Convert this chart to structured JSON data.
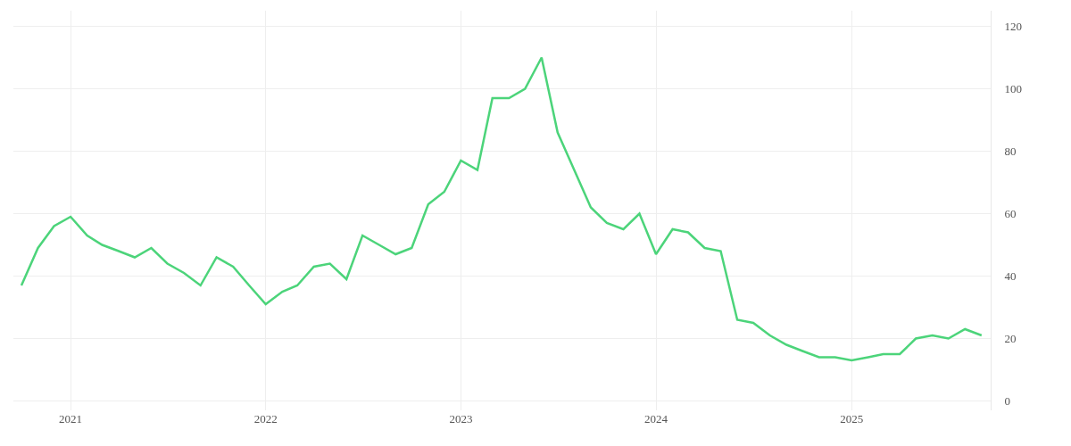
{
  "chart_data": {
    "type": "line",
    "x": [
      "2020-10",
      "2020-11",
      "2020-12",
      "2021-01",
      "2021-02",
      "2021-03",
      "2021-04",
      "2021-05",
      "2021-06",
      "2021-07",
      "2021-08",
      "2021-09",
      "2021-10",
      "2021-11",
      "2021-12",
      "2022-01",
      "2022-02",
      "2022-03",
      "2022-04",
      "2022-05",
      "2022-06",
      "2022-07",
      "2022-08",
      "2022-09",
      "2022-10",
      "2022-11",
      "2022-12",
      "2023-01",
      "2023-02",
      "2023-03",
      "2023-04",
      "2023-05",
      "2023-06",
      "2023-07",
      "2023-08",
      "2023-09",
      "2023-10",
      "2023-11",
      "2023-12",
      "2024-01",
      "2024-02",
      "2024-03",
      "2024-04",
      "2024-05",
      "2024-06",
      "2024-07",
      "2024-08",
      "2024-09",
      "2024-10",
      "2024-11",
      "2024-12",
      "2025-01",
      "2025-02",
      "2025-03",
      "2025-04",
      "2025-05",
      "2025-06",
      "2025-07",
      "2025-08",
      "2025-09"
    ],
    "series": [
      {
        "color": "#4cd47a",
        "values": [
          37,
          49,
          56,
          59,
          53,
          50,
          48,
          46,
          49,
          44,
          41,
          37,
          46,
          43,
          37,
          31,
          35,
          37,
          43,
          44,
          39,
          53,
          50,
          47,
          49,
          63,
          67,
          77,
          74,
          97,
          97,
          100,
          110,
          86,
          74,
          62,
          57,
          55,
          60,
          47,
          55,
          54,
          49,
          48,
          26,
          25,
          21,
          18,
          16,
          14,
          14,
          13,
          14,
          15,
          15,
          20,
          21,
          20,
          23,
          21
        ]
      }
    ],
    "xlim": [
      "2020-09-16",
      "2025-09-18"
    ],
    "xticks": [
      {
        "value": "2021-01",
        "label": "2021"
      },
      {
        "value": "2022-01",
        "label": "2022"
      },
      {
        "value": "2023-01",
        "label": "2023"
      },
      {
        "value": "2024-01",
        "label": "2024"
      },
      {
        "value": "2025-01",
        "label": "2025"
      }
    ],
    "ylim": [
      -3,
      125
    ],
    "yticks": [
      0,
      20,
      40,
      60,
      80,
      100,
      120
    ],
    "grid": true,
    "marker": "none",
    "line_style": "solid"
  }
}
